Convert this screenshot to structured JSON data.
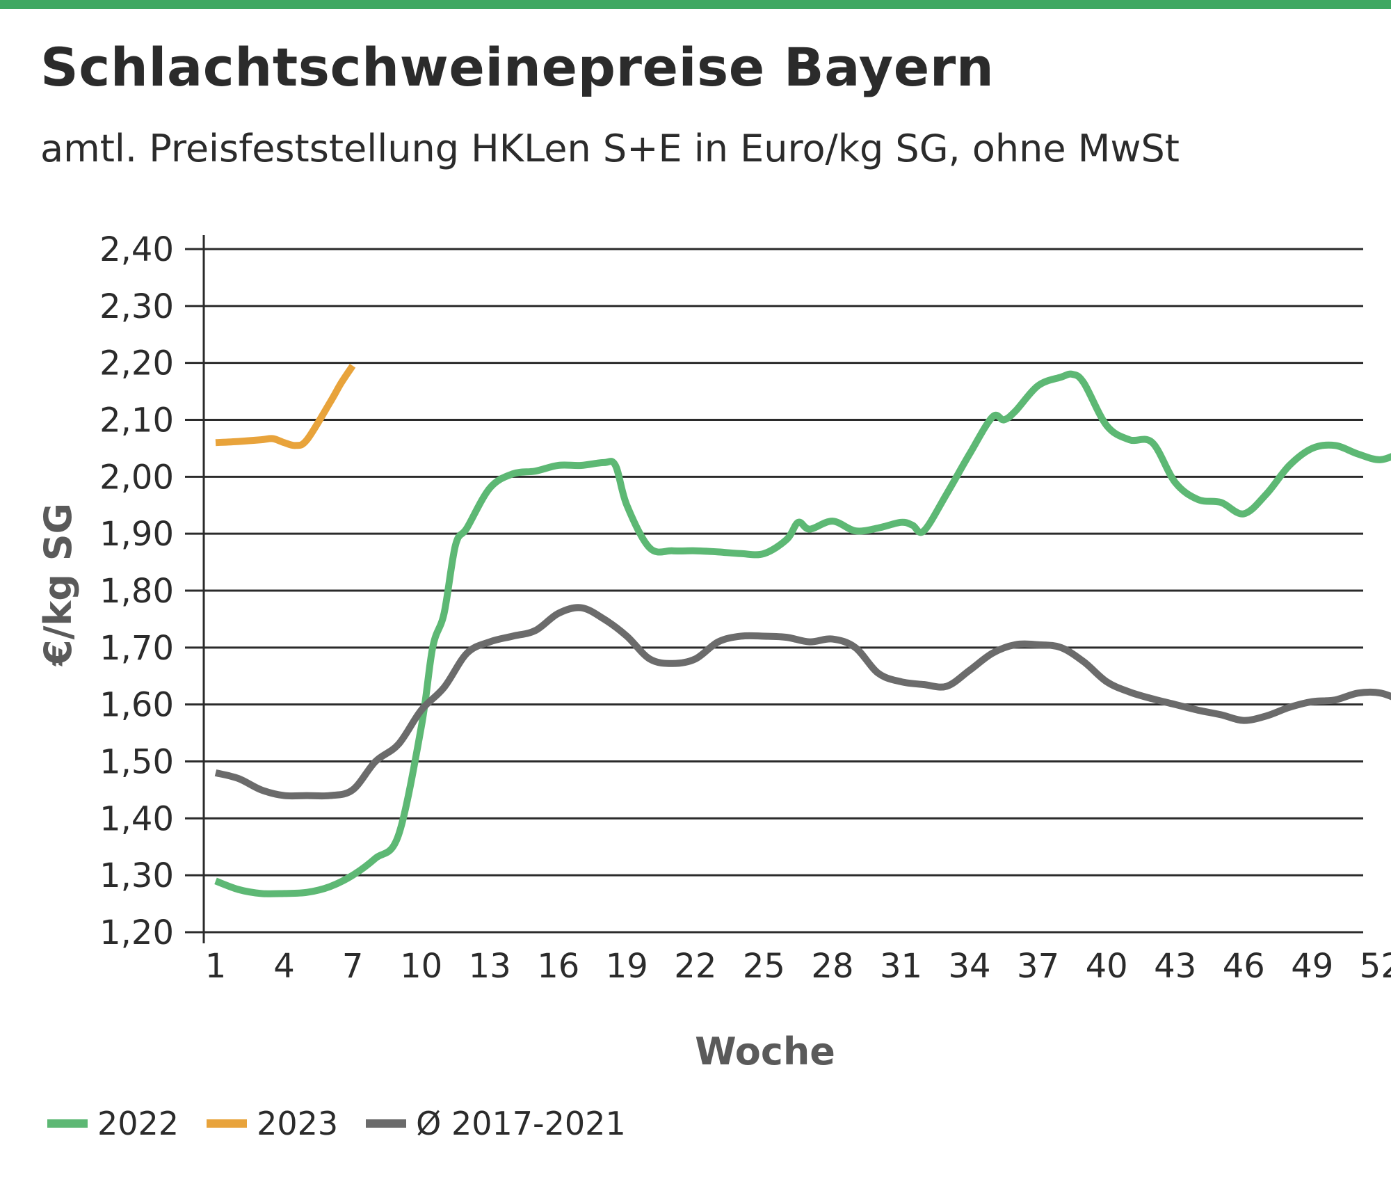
{
  "header": {
    "title": "Schlachtschweinepreise Bayern",
    "subtitle": "amtl. Preisfeststellung HKLen S+E in Euro/kg SG, ohne MwSt"
  },
  "colors": {
    "accent_bar": "#3fa862",
    "series_2022": "#5db874",
    "series_2023": "#e8a33b",
    "series_avg": "#6b6b6b",
    "grid": "#2b2b2b"
  },
  "chart_data": {
    "type": "line",
    "xlabel": "Woche",
    "ylabel": "€/kg SG",
    "xlim": [
      1,
      53
    ],
    "ylim": [
      1.2,
      2.4
    ],
    "grid": "horizontal",
    "legend_position": "bottom-left",
    "x_ticks": [
      1,
      4,
      7,
      10,
      13,
      16,
      19,
      22,
      25,
      28,
      31,
      34,
      37,
      40,
      43,
      46,
      49,
      52
    ],
    "y_ticks": [
      {
        "value": 1.2,
        "label": "1,20"
      },
      {
        "value": 1.3,
        "label": "1,30"
      },
      {
        "value": 1.4,
        "label": "1,40"
      },
      {
        "value": 1.5,
        "label": "1,50"
      },
      {
        "value": 1.6,
        "label": "1,60"
      },
      {
        "value": 1.7,
        "label": "1,70"
      },
      {
        "value": 1.8,
        "label": "1,80"
      },
      {
        "value": 1.9,
        "label": "1,90"
      },
      {
        "value": 2.0,
        "label": "2,00"
      },
      {
        "value": 2.1,
        "label": "2,10"
      },
      {
        "value": 2.2,
        "label": "2,20"
      },
      {
        "value": 2.3,
        "label": "2,30"
      },
      {
        "value": 2.4,
        "label": "2,40"
      }
    ],
    "series": [
      {
        "name": "2022",
        "color": "#5db874",
        "x": [
          1,
          2,
          3,
          4,
          5,
          6,
          7,
          8,
          9,
          10,
          10.5,
          11,
          11.5,
          12,
          13,
          14,
          15,
          16,
          17,
          18,
          18.5,
          19,
          20,
          21,
          22,
          23,
          24,
          25,
          26,
          26.5,
          27,
          28,
          29,
          30,
          31,
          31.5,
          32,
          33,
          34,
          35,
          35.5,
          36,
          37,
          38,
          38.5,
          39,
          40,
          41,
          42,
          43,
          44,
          45,
          46,
          47,
          48,
          49,
          50,
          51,
          52,
          53
        ],
        "y": [
          1.29,
          1.275,
          1.268,
          1.268,
          1.27,
          1.28,
          1.3,
          1.33,
          1.37,
          1.56,
          1.7,
          1.76,
          1.88,
          1.91,
          1.98,
          2.005,
          2.01,
          2.02,
          2.02,
          2.025,
          2.02,
          1.95,
          1.875,
          1.87,
          1.87,
          1.868,
          1.865,
          1.865,
          1.89,
          1.92,
          1.908,
          1.922,
          1.905,
          1.91,
          1.92,
          1.915,
          1.905,
          1.97,
          2.04,
          2.105,
          2.1,
          2.115,
          2.16,
          2.175,
          2.18,
          2.165,
          2.09,
          2.065,
          2.06,
          1.99,
          1.96,
          1.955,
          1.935,
          1.97,
          2.02,
          2.05,
          2.055,
          2.04,
          2.03,
          2.045
        ]
      },
      {
        "name": "2023",
        "color": "#e8a33b",
        "x": [
          1,
          2,
          3,
          3.5,
          4,
          4.5,
          5,
          6,
          6.5,
          7
        ],
        "y": [
          2.06,
          2.062,
          2.065,
          2.067,
          2.06,
          2.055,
          2.065,
          2.13,
          2.165,
          2.195
        ]
      },
      {
        "name": "Ø 2017-2021",
        "color": "#6b6b6b",
        "x": [
          1,
          2,
          3,
          4,
          5,
          6,
          7,
          8,
          9,
          10,
          11,
          12,
          13,
          14,
          15,
          16,
          17,
          18,
          19,
          20,
          21,
          22,
          23,
          24,
          25,
          26,
          27,
          28,
          29,
          30,
          31,
          32,
          33,
          34,
          35,
          36,
          37,
          38,
          39,
          40,
          41,
          42,
          43,
          44,
          45,
          46,
          47,
          48,
          49,
          50,
          51,
          52,
          53
        ],
        "y": [
          1.48,
          1.47,
          1.45,
          1.44,
          1.44,
          1.44,
          1.45,
          1.5,
          1.53,
          1.59,
          1.63,
          1.69,
          1.71,
          1.72,
          1.73,
          1.76,
          1.77,
          1.75,
          1.72,
          1.68,
          1.672,
          1.68,
          1.71,
          1.72,
          1.72,
          1.718,
          1.71,
          1.715,
          1.7,
          1.655,
          1.64,
          1.635,
          1.632,
          1.66,
          1.69,
          1.705,
          1.705,
          1.7,
          1.675,
          1.64,
          1.622,
          1.61,
          1.6,
          1.59,
          1.582,
          1.572,
          1.58,
          1.595,
          1.605,
          1.608,
          1.62,
          1.62,
          1.605
        ]
      }
    ]
  },
  "legend": {
    "items": [
      {
        "label": "2022",
        "color": "#5db874"
      },
      {
        "label": "2023",
        "color": "#e8a33b"
      },
      {
        "label": "Ø 2017-2021",
        "color": "#6b6b6b"
      }
    ]
  }
}
